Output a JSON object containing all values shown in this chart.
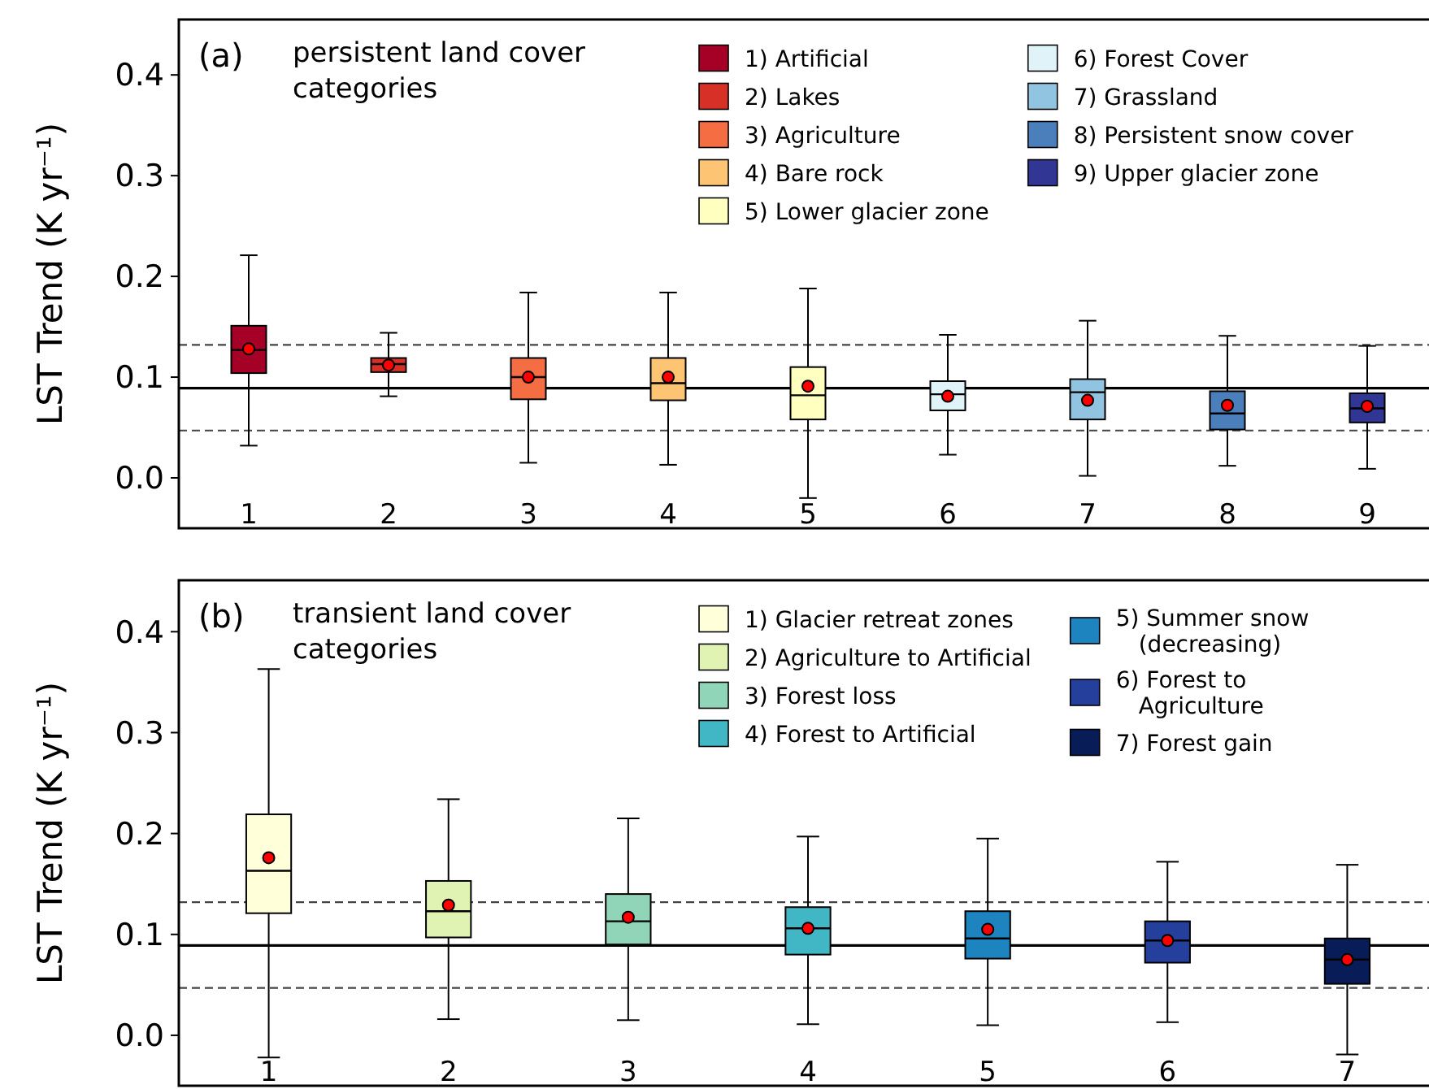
{
  "chart_data": [
    {
      "type": "box",
      "title": "(a)",
      "subtitle": "persistent land cover categories",
      "ylabel": "LST Trend (K yr⁻¹)",
      "categories": [
        "1",
        "2",
        "3",
        "4",
        "5",
        "6",
        "7",
        "8",
        "9"
      ],
      "ylim": [
        -0.05,
        0.455
      ],
      "yticks": [
        {
          "value": 0,
          "label": "0.0"
        },
        0.1,
        0.2,
        0.3,
        0.4
      ],
      "legend": "top right",
      "ref_lines": [
        {
          "axis": "y",
          "value": 0.089,
          "color": "#000000",
          "line_style": "solid"
        },
        {
          "axis": "y",
          "value": 0.132,
          "color": "#444444",
          "line_style": "dashed"
        },
        {
          "axis": "y",
          "value": 0.047,
          "color": "#444444",
          "line_style": "dashed"
        }
      ],
      "series": [
        {
          "name": "1) Artificial",
          "color": "#a50026",
          "x": [
            "1"
          ],
          "boxes": [
            {
              "low": 0.032,
              "q1": 0.104,
              "median": 0.127,
              "q3": 0.151,
              "high": 0.221,
              "mean": 0.128
            }
          ]
        },
        {
          "name": "2) Lakes",
          "color": "#d73027",
          "x": [
            "2"
          ],
          "boxes": [
            {
              "low": 0.081,
              "q1": 0.105,
              "median": 0.113,
              "q3": 0.119,
              "high": 0.144,
              "mean": 0.112
            }
          ]
        },
        {
          "name": "3) Agriculture",
          "color": "#f46d43",
          "x": [
            "3"
          ],
          "boxes": [
            {
              "low": 0.015,
              "q1": 0.078,
              "median": 0.1,
              "q3": 0.119,
              "high": 0.184,
              "mean": 0.1
            }
          ]
        },
        {
          "name": "4) Bare rock",
          "color": "#fdc474",
          "x": [
            "4"
          ],
          "boxes": [
            {
              "low": 0.013,
              "q1": 0.077,
              "median": 0.094,
              "q3": 0.119,
              "high": 0.184,
              "mean": 0.1
            }
          ]
        },
        {
          "name": "5) Lower glacier zone",
          "color": "#ffffbf",
          "x": [
            "5"
          ],
          "boxes": [
            {
              "low": -0.02,
              "q1": 0.058,
              "median": 0.082,
              "q3": 0.11,
              "high": 0.188,
              "mean": 0.091
            }
          ]
        },
        {
          "name": "6) Forest Cover",
          "color": "#e0f3f8",
          "x": [
            "6"
          ],
          "boxes": [
            {
              "low": 0.023,
              "q1": 0.067,
              "median": 0.083,
              "q3": 0.096,
              "high": 0.142,
              "mean": 0.081
            }
          ]
        },
        {
          "name": "7) Grassland",
          "color": "#91c4e0",
          "x": [
            "7"
          ],
          "boxes": [
            {
              "low": 0.002,
              "q1": 0.058,
              "median": 0.085,
              "q3": 0.098,
              "high": 0.156,
              "mean": 0.077
            }
          ]
        },
        {
          "name": "8) Persistent snow cover",
          "color": "#4a7fbc",
          "x": [
            "8"
          ],
          "boxes": [
            {
              "low": 0.012,
              "q1": 0.048,
              "median": 0.064,
              "q3": 0.086,
              "high": 0.141,
              "mean": 0.072
            }
          ]
        },
        {
          "name": "9) Upper glacier zone",
          "color": "#313695",
          "x": [
            "9"
          ],
          "boxes": [
            {
              "low": 0.009,
              "q1": 0.055,
              "median": 0.069,
              "q3": 0.084,
              "high": 0.131,
              "mean": 0.071
            }
          ]
        }
      ]
    },
    {
      "type": "box",
      "title": "(b)",
      "subtitle": "transient land cover categories",
      "ylabel": "LST Trend (K yr⁻¹)",
      "categories": [
        "1",
        "2",
        "3",
        "4",
        "5",
        "6",
        "7"
      ],
      "ylim": [
        -0.05,
        0.451
      ],
      "yticks": [
        {
          "value": 0,
          "label": "0.0"
        },
        0.1,
        0.2,
        0.3,
        0.4
      ],
      "legend": "top right",
      "ref_lines": [
        {
          "axis": "y",
          "value": 0.089,
          "color": "#000000",
          "line_style": "solid"
        },
        {
          "axis": "y",
          "value": 0.132,
          "color": "#444444",
          "line_style": "dashed"
        },
        {
          "axis": "y",
          "value": 0.047,
          "color": "#444444",
          "line_style": "dashed"
        }
      ],
      "series": [
        {
          "name": "1) Glacier retreat zones",
          "color": "#ffffd9",
          "x": [
            "1"
          ],
          "boxes": [
            {
              "low": -0.022,
              "q1": 0.121,
              "median": 0.163,
              "q3": 0.219,
              "high": 0.363,
              "mean": 0.176
            }
          ]
        },
        {
          "name": "2) Agriculture to Artificial",
          "color": "#e0f3b2",
          "x": [
            "2"
          ],
          "boxes": [
            {
              "low": 0.016,
              "q1": 0.097,
              "median": 0.123,
              "q3": 0.153,
              "high": 0.234,
              "mean": 0.129
            }
          ]
        },
        {
          "name": "3) Forest loss",
          "color": "#90d5b8",
          "x": [
            "3"
          ],
          "boxes": [
            {
              "low": 0.015,
              "q1": 0.09,
              "median": 0.113,
              "q3": 0.14,
              "high": 0.215,
              "mean": 0.117
            }
          ]
        },
        {
          "name": "4) Forest to Artificial",
          "color": "#41b6c4",
          "x": [
            "4"
          ],
          "boxes": [
            {
              "low": 0.011,
              "q1": 0.08,
              "median": 0.106,
              "q3": 0.127,
              "high": 0.197,
              "mean": 0.106
            }
          ]
        },
        {
          "name": "5) Summer snow\n(decreasing)",
          "color": "#1d84bf",
          "x": [
            "5"
          ],
          "boxes": [
            {
              "low": 0.01,
              "q1": 0.076,
              "median": 0.096,
              "q3": 0.123,
              "high": 0.195,
              "mean": 0.105
            }
          ]
        },
        {
          "name": "6) Forest to\nAgriculture",
          "color": "#253f9d",
          "x": [
            "6"
          ],
          "boxes": [
            {
              "low": 0.013,
              "q1": 0.072,
              "median": 0.094,
              "q3": 0.113,
              "high": 0.172,
              "mean": 0.094
            }
          ]
        },
        {
          "name": "7) Forest gain",
          "color": "#081d58",
          "x": [
            "7"
          ],
          "boxes": [
            {
              "low": -0.019,
              "q1": 0.051,
              "median": 0.075,
              "q3": 0.096,
              "high": 0.169,
              "mean": 0.075
            }
          ]
        }
      ]
    }
  ]
}
